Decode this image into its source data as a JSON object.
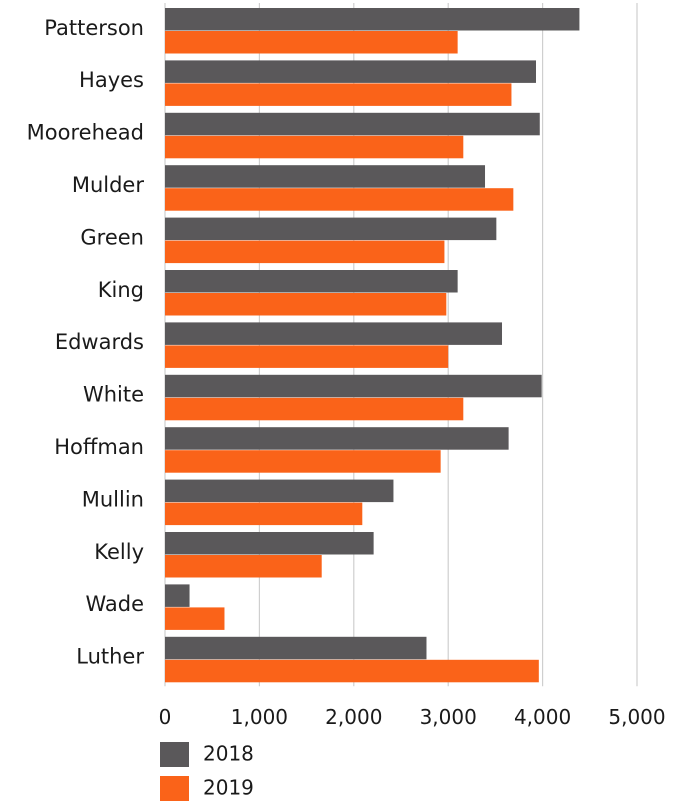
{
  "chart_data": {
    "type": "bar",
    "orientation": "horizontal",
    "categories": [
      "Patterson",
      "Hayes",
      "Moorehead",
      "Mulder",
      "Green",
      "King",
      "Edwards",
      "White",
      "Hoffman",
      "Mullin",
      "Kelly",
      "Wade",
      "Luther"
    ],
    "series": [
      {
        "name": "2018",
        "color": "#5a585a",
        "values": [
          4390,
          3930,
          3970,
          3390,
          3510,
          3100,
          3570,
          3990,
          3640,
          2420,
          2210,
          260,
          2770
        ]
      },
      {
        "name": "2019",
        "color": "#fa6319",
        "values": [
          3100,
          3670,
          3160,
          3690,
          2960,
          2980,
          3000,
          3160,
          2920,
          2090,
          1660,
          630,
          3960
        ]
      }
    ],
    "xlim": [
      0,
      5000
    ],
    "xticks": [
      0,
      1000,
      2000,
      3000,
      4000,
      5000
    ],
    "xtick_labels": [
      "0",
      "1,000",
      "2,000",
      "3,000",
      "4,000",
      "5,000"
    ],
    "grid": "vertical",
    "legend_position": "bottom-left",
    "title": "",
    "xlabel": "",
    "ylabel": ""
  }
}
